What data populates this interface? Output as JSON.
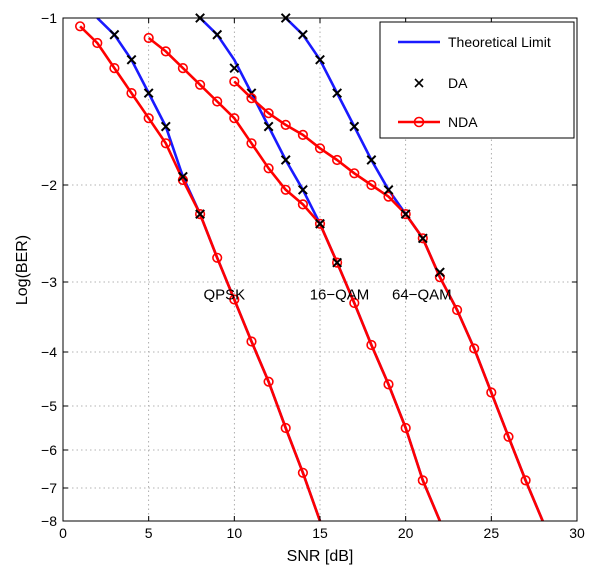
{
  "chart_data": {
    "type": "line",
    "title": "",
    "xlabel": "SNR [dB]",
    "ylabel": "Log(BER)",
    "xlim": [
      0,
      30
    ],
    "ylim": [
      -8,
      -1
    ],
    "x_ticks": [
      0,
      5,
      10,
      15,
      20,
      25,
      30
    ],
    "y_ticks": [
      -8,
      -7,
      -6,
      -5,
      -4,
      -3,
      -2,
      -1
    ],
    "y_scale": "nonlinear",
    "grid": true,
    "legend_position": "top-right",
    "legend": [
      {
        "label": "Theoretical Limit",
        "style": "blue-line"
      },
      {
        "label": "DA",
        "style": "black-x"
      },
      {
        "label": "NDA",
        "style": "red-line-circle"
      }
    ],
    "colors": {
      "theoretical": "#1a1aff",
      "da": "#000000",
      "nda": "#ff0000"
    },
    "annotations": [
      {
        "text": "QPSK",
        "x": 8.2,
        "y": -3.75
      },
      {
        "text": "16−QAM",
        "x": 14.4,
        "y": -3.75
      },
      {
        "text": "64−QAM",
        "x": 19.2,
        "y": -3.75
      }
    ],
    "groups": [
      {
        "modulation": "QPSK",
        "theoretical": {
          "x": [
            2,
            3,
            4,
            5,
            6,
            7,
            8,
            9,
            10,
            11,
            12,
            13,
            14,
            15
          ],
          "y": [
            -1,
            -1.1,
            -1.25,
            -1.45,
            -1.65,
            -1.95,
            -2.3,
            -2.75,
            -3.25,
            -3.85,
            -4.55,
            -5.5,
            -6.6,
            -8
          ]
        },
        "da": {
          "x": [
            3,
            4,
            5,
            6,
            7,
            8
          ],
          "y": [
            -1.1,
            -1.25,
            -1.45,
            -1.65,
            -1.95,
            -2.3
          ]
        },
        "nda": {
          "x": [
            1,
            2,
            3,
            4,
            5,
            6,
            7,
            8,
            9,
            10,
            11,
            12,
            13,
            14,
            15
          ],
          "y": [
            -1.05,
            -1.15,
            -1.3,
            -1.45,
            -1.6,
            -1.75,
            -1.97,
            -2.3,
            -2.75,
            -3.25,
            -3.85,
            -4.55,
            -5.5,
            -6.6,
            -8
          ]
        }
      },
      {
        "modulation": "16-QAM",
        "theoretical": {
          "x": [
            8,
            9,
            10,
            11,
            12,
            13,
            14,
            15,
            16,
            17,
            18,
            19,
            20,
            21,
            22
          ],
          "y": [
            -1,
            -1.1,
            -1.25,
            -1.45,
            -1.65,
            -1.85,
            -2.05,
            -2.4,
            -2.8,
            -3.3,
            -3.9,
            -4.6,
            -5.5,
            -6.8,
            -8
          ]
        },
        "da": {
          "x": [
            8,
            9,
            10,
            11,
            12,
            13,
            14,
            15,
            16
          ],
          "y": [
            -1,
            -1.1,
            -1.3,
            -1.45,
            -1.65,
            -1.85,
            -2.05,
            -2.4,
            -2.8
          ]
        },
        "nda": {
          "x": [
            5,
            6,
            7,
            8,
            9,
            10,
            11,
            12,
            13,
            14,
            15,
            16,
            17,
            18,
            19,
            20,
            21,
            22
          ],
          "y": [
            -1.12,
            -1.2,
            -1.3,
            -1.4,
            -1.5,
            -1.6,
            -1.75,
            -1.9,
            -2.05,
            -2.2,
            -2.4,
            -2.8,
            -3.3,
            -3.9,
            -4.6,
            -5.5,
            -6.8,
            -8
          ]
        }
      },
      {
        "modulation": "64-QAM",
        "theoretical": {
          "x": [
            13,
            14,
            15,
            16,
            17,
            18,
            19,
            20,
            21,
            22,
            23,
            24,
            25,
            26,
            27,
            28
          ],
          "y": [
            -1,
            -1.1,
            -1.25,
            -1.45,
            -1.65,
            -1.85,
            -2.05,
            -2.3,
            -2.55,
            -2.95,
            -3.4,
            -3.95,
            -4.75,
            -5.7,
            -6.8,
            -8
          ]
        },
        "da": {
          "x": [
            13,
            14,
            15,
            16,
            17,
            18,
            19,
            20,
            21,
            22
          ],
          "y": [
            -1,
            -1.1,
            -1.25,
            -1.45,
            -1.65,
            -1.85,
            -2.05,
            -2.3,
            -2.55,
            -2.9
          ]
        },
        "nda": {
          "x": [
            10,
            11,
            12,
            13,
            14,
            15,
            16,
            17,
            18,
            19,
            20,
            21,
            22,
            23,
            24,
            25,
            26,
            27,
            28
          ],
          "y": [
            -1.38,
            -1.48,
            -1.57,
            -1.64,
            -1.7,
            -1.78,
            -1.85,
            -1.93,
            -2.0,
            -2.12,
            -2.3,
            -2.55,
            -2.95,
            -3.4,
            -3.95,
            -4.75,
            -5.7,
            -6.8,
            -8
          ]
        }
      }
    ]
  }
}
